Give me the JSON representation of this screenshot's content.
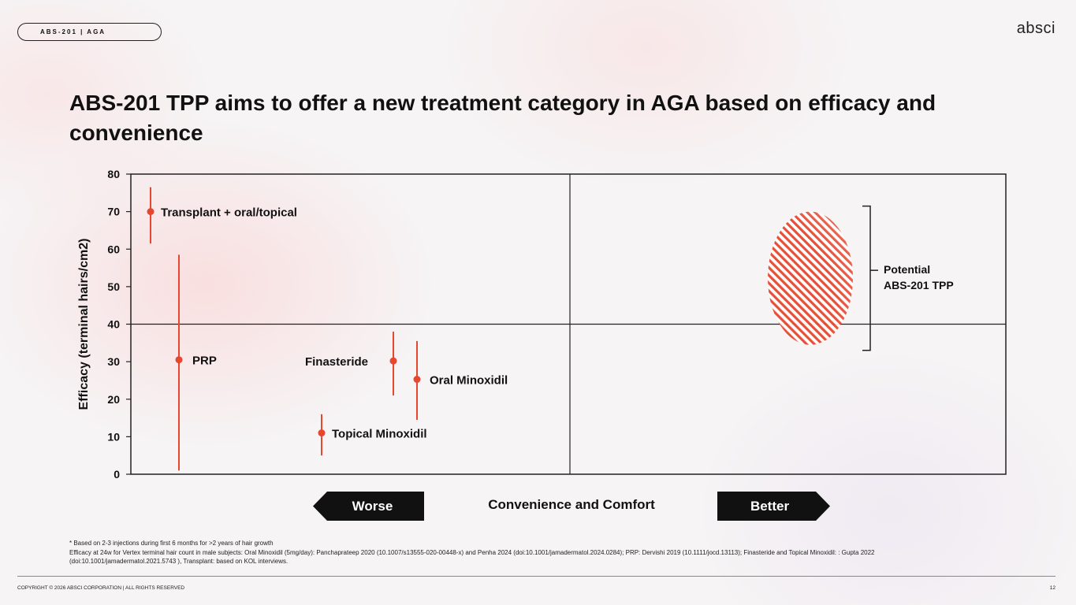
{
  "header": {
    "tag": "ABS-201 | AGA",
    "logo": "absci"
  },
  "title": "ABS-201 TPP aims to offer a new treatment category in AGA based on efficacy and convenience",
  "chart_data": {
    "type": "scatter",
    "ylabel": "Efficacy (terminal hairs/cm2)",
    "xlabel": "Convenience and Comfort",
    "ylim": [
      0,
      80
    ],
    "yticks": [
      0,
      10,
      20,
      30,
      40,
      50,
      60,
      70,
      80
    ],
    "reference_line_y": 40,
    "accent_color": "#e8472f",
    "points": [
      {
        "label": "Transplant + oral/topical",
        "y": 70,
        "low": 61.5,
        "high": 76.5
      },
      {
        "label": "PRP",
        "y": 30.5,
        "low": 1,
        "high": 58.5
      },
      {
        "label": "Topical Minoxidil",
        "y": 11,
        "low": 5,
        "high": 16
      },
      {
        "label": "Finasteride",
        "y": 30.2,
        "low": 21,
        "high": 38
      },
      {
        "label": "Oral Minoxidil",
        "y": 25.3,
        "low": 14.5,
        "high": 35.5
      }
    ],
    "target_region": {
      "label_line1": "Potential",
      "label_line2": "ABS-201 TPP",
      "y_low": 34.5,
      "y_high": 70
    }
  },
  "axis_arrows": {
    "left": "Worse",
    "right": "Better"
  },
  "footnotes": [
    "* Based on 2-3 injections during first 6 months for >2 years of hair growth",
    "Efficacy at 24w for Vertex terminal hair count in male subjects: Oral Minoxidil (5mg/day): Panchaprateep 2020 (10.1007/s13555-020-00448-x) and Penha 2024 (doi:10.1001/jamadermatol.2024.0284); PRP: Dervishi 2019 (10.1111/jocd.13113); Finasteride and Topical Minoxidil: : Gupta 2022",
    "(doi:10.1001/jamadermatol.2021.5743 ), Transplant: based on KOL interviews."
  ],
  "footer": {
    "copyright": "COPYRIGHT © 2026 ABSCI CORPORATION | ALL RIGHTS RESERVED",
    "page": "12"
  }
}
